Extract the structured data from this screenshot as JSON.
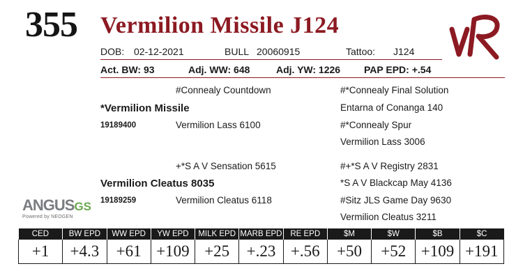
{
  "lot": {
    "number": "355",
    "name": "Vermilion Missile J124"
  },
  "colors": {
    "accent": "#8c1a22",
    "header_bg": "#1a1a1a",
    "gs_green": "#6aa84f"
  },
  "brand_logo": "VR",
  "info": {
    "dob_label": "DOB:",
    "dob": "02-12-2021",
    "sex_label": "BULL",
    "reg": "20060915",
    "tattoo_label": "Tattoo:",
    "tattoo": "J124",
    "act_bw": "Act. BW: 93",
    "adj_ww": "Adj. WW: 648",
    "adj_yw": "Adj. YW: 1226",
    "pap_epd": "PAP EPD: +.54"
  },
  "pedigree": {
    "sire": {
      "name": "*Vermilion Missile",
      "reg": "19189400"
    },
    "dam": {
      "name": "Vermilion Cleatus 8035",
      "reg": "19189259"
    },
    "sire_sire": "#Connealy Countdown",
    "sire_dam": "Vermilion Lass 6100",
    "dam_sire": "+*S A V Sensation 5615",
    "dam_dam": "Vermilion Cleatus 6118",
    "ggp": [
      "#*Connealy Final Solution",
      "Entarna of Conanga 140",
      "#*Connealy Spur",
      "Vermilion Lass 3006",
      "#+*S A V Registry 2831",
      "*S A V Blackcap May 4136",
      "#Sitz JLS Game Day 9630",
      "Vermilion Cleatus 3211"
    ]
  },
  "agus_logo": {
    "main": "ANGUS",
    "accent": "GS",
    "sub": "Powered by NEOGEN"
  },
  "epd": {
    "headers": [
      "CED",
      "BW EPD",
      "WW EPD",
      "YW EPD",
      "MILK EPD",
      "MARB EPD",
      "RE EPD",
      "$M",
      "$W",
      "$B",
      "$C"
    ],
    "values": [
      "+1",
      "+4.3",
      "+61",
      "+109",
      "+25",
      "+.23",
      "+.56",
      "+50",
      "+52",
      "+109",
      "+191"
    ]
  }
}
